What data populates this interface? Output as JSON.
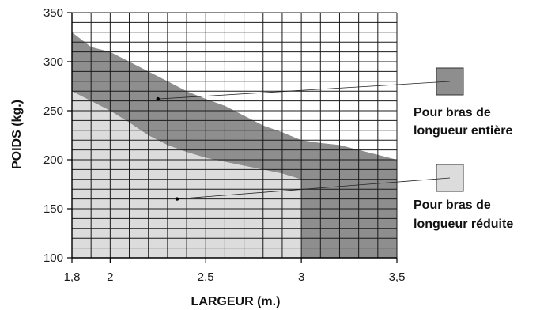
{
  "chart_data": {
    "type": "area",
    "xlabel": "LARGEUR (m.)",
    "ylabel": "POIDS (kg.)",
    "xlim": [
      1.8,
      3.5
    ],
    "ylim": [
      100,
      350
    ],
    "x_ticks": [
      "1,8",
      "2",
      "2,5",
      "3",
      "3,5"
    ],
    "x_tick_values": [
      1.8,
      2,
      2.5,
      3,
      3.5
    ],
    "y_ticks": [
      100,
      150,
      200,
      250,
      300,
      350
    ],
    "grid": true,
    "grid_step_x": 0.1,
    "grid_step_y": 10,
    "series": [
      {
        "name": "Pour bras de longueur entière",
        "color": "#8e8e8e",
        "x": [
          1.8,
          1.9,
          2.0,
          2.1,
          2.2,
          2.3,
          2.4,
          2.5,
          2.6,
          2.7,
          2.8,
          2.9,
          3.0,
          3.1,
          3.2,
          3.3,
          3.4,
          3.5
        ],
        "y": [
          330,
          315,
          310,
          300,
          290,
          280,
          270,
          262,
          255,
          245,
          235,
          228,
          220,
          217,
          215,
          210,
          205,
          200
        ]
      },
      {
        "name": "Pour bras de longueur réduite",
        "color": "#dcdcdc",
        "x": [
          1.8,
          1.9,
          2.0,
          2.1,
          2.2,
          2.3,
          2.4,
          2.5,
          2.6,
          2.7,
          2.8,
          2.9,
          3.0
        ],
        "y": [
          270,
          260,
          250,
          238,
          225,
          215,
          208,
          202,
          198,
          194,
          190,
          186,
          180
        ]
      }
    ],
    "legend": {
      "full": {
        "line1": "Pour bras de",
        "line2": "longueur entière"
      },
      "reduced": {
        "line1": "Pour bras de",
        "line2": "longueur réduite"
      }
    }
  }
}
